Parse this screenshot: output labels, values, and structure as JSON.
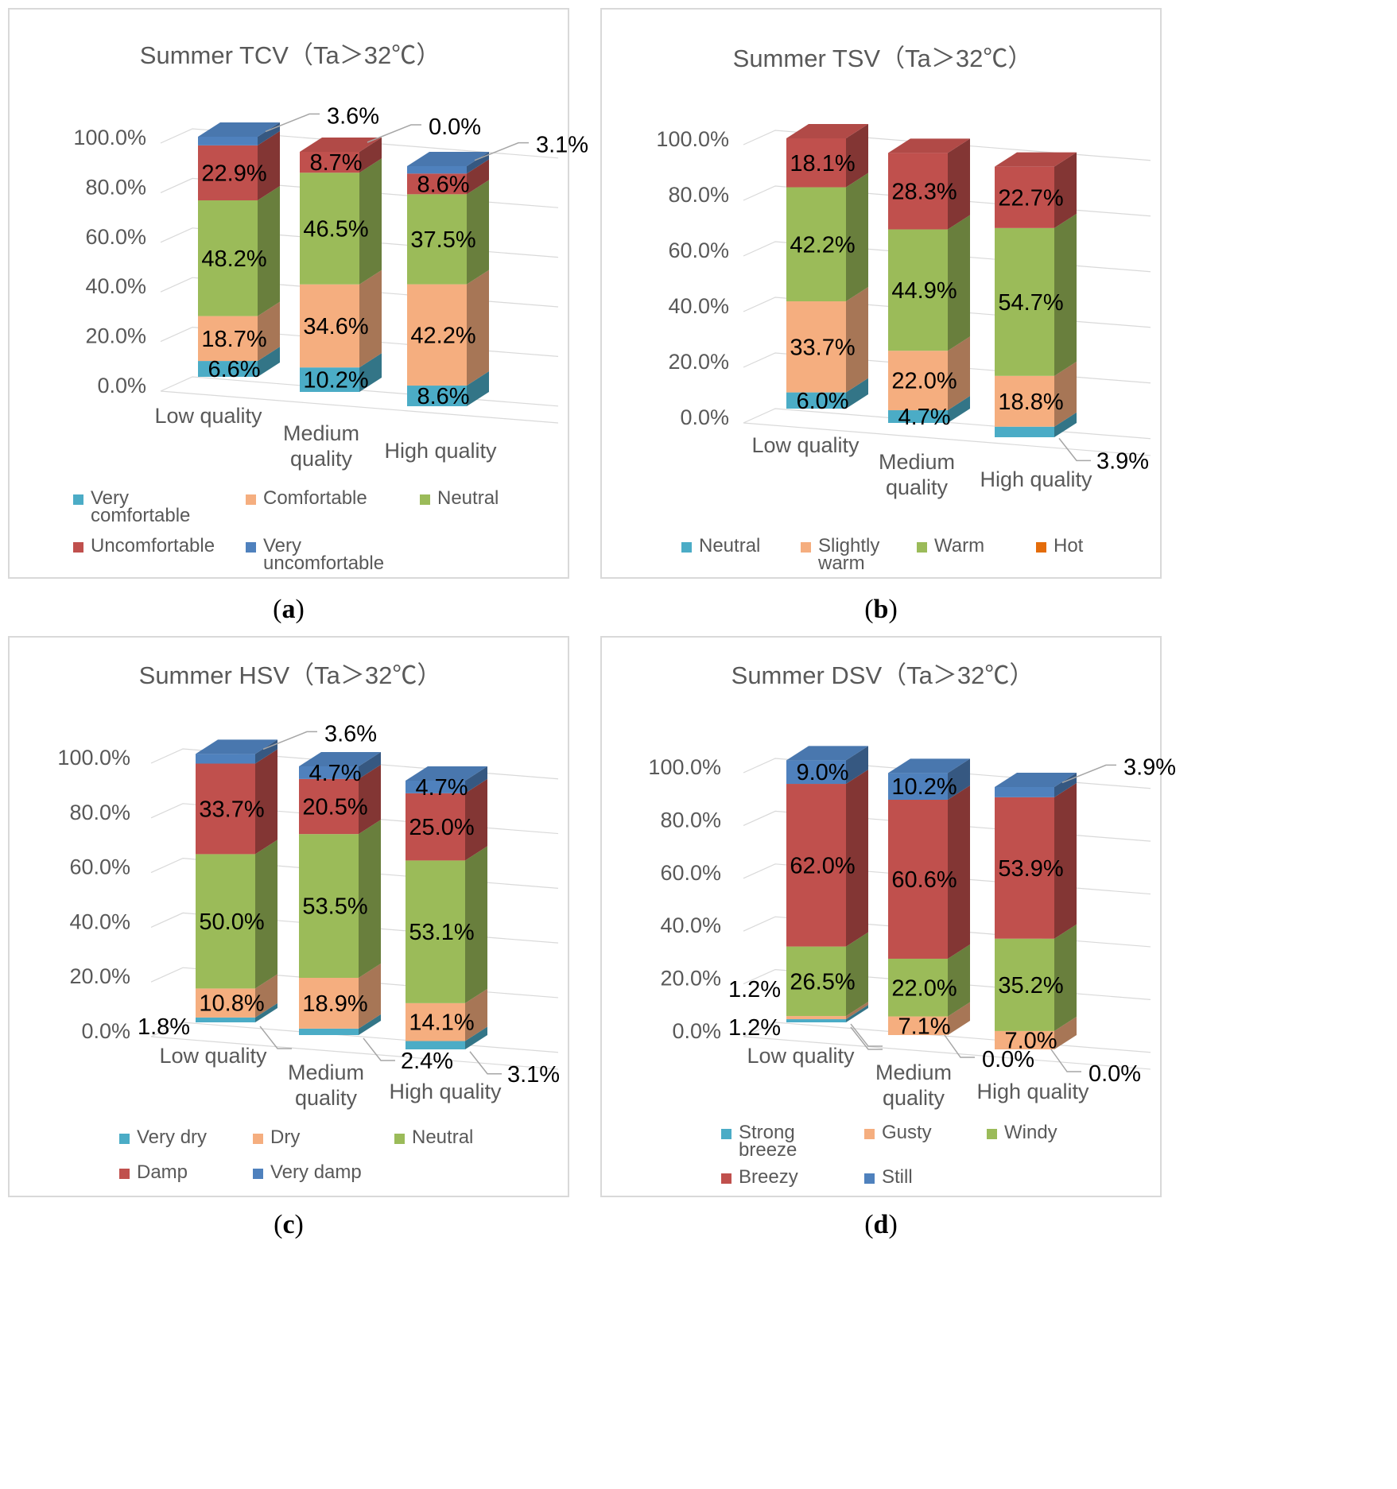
{
  "figure": {
    "colors": {
      "cyan": "#4bacc6",
      "orange": "#f5ae7f",
      "green": "#9bbb59",
      "red": "#c0504d",
      "blue": "#4f81bd",
      "hot": "#e46c0a"
    }
  },
  "chart_data": [
    {
      "type": "bar",
      "stacked": true,
      "three_d": true,
      "panel_label": "a",
      "title": "Summer TCV（Ta＞32℃）",
      "categories": [
        "Low quality",
        "Medium quality",
        "High quality"
      ],
      "ylim": [
        0,
        100
      ],
      "yticks": [
        "0.0%",
        "20.0%",
        "40.0%",
        "60.0%",
        "80.0%",
        "100.0%"
      ],
      "grid": true,
      "legend_position": "bottom",
      "series": [
        {
          "name": "Very comfortable",
          "color": "#4bacc6",
          "values": [
            6.6,
            10.2,
            8.6
          ],
          "labels": [
            "6.6%",
            "10.2%",
            "8.6%"
          ]
        },
        {
          "name": "Comfortable",
          "color": "#f5ae7f",
          "values": [
            18.7,
            34.6,
            42.2
          ],
          "labels": [
            "18.7%",
            "34.6%",
            "42.2%"
          ]
        },
        {
          "name": "Neutral",
          "color": "#9bbb59",
          "values": [
            48.2,
            46.5,
            37.5
          ],
          "labels": [
            "48.2%",
            "46.5%",
            "37.5%"
          ]
        },
        {
          "name": "Uncomfortable",
          "color": "#c0504d",
          "values": [
            22.9,
            8.7,
            8.6
          ],
          "labels": [
            "22.9%",
            "8.7%",
            "8.6%"
          ]
        },
        {
          "name": "Very uncomfortable",
          "color": "#4f81bd",
          "values": [
            3.6,
            0.0,
            3.1
          ],
          "labels": [
            "3.6%",
            "0.0%",
            "3.1%"
          ]
        }
      ]
    },
    {
      "type": "bar",
      "stacked": true,
      "three_d": true,
      "panel_label": "b",
      "title": "Summer TSV（Ta＞32℃）",
      "categories": [
        "Low quality",
        "Medium quality",
        "High quality"
      ],
      "ylim": [
        0,
        100
      ],
      "yticks": [
        "0.0%",
        "20.0%",
        "40.0%",
        "60.0%",
        "80.0%",
        "100.0%"
      ],
      "grid": true,
      "legend_position": "bottom",
      "series": [
        {
          "name": "Neutral",
          "color": "#4bacc6",
          "values": [
            6.0,
            4.7,
            3.9
          ],
          "labels": [
            "6.0%",
            "4.7%",
            "3.9%"
          ]
        },
        {
          "name": "Slightly warm",
          "color": "#f5ae7f",
          "values": [
            33.7,
            22.0,
            18.8
          ],
          "labels": [
            "33.7%",
            "22.0%",
            "18.8%"
          ]
        },
        {
          "name": "Warm",
          "color": "#9bbb59",
          "values": [
            42.2,
            44.9,
            54.7
          ],
          "labels": [
            "42.2%",
            "44.9%",
            "54.7%"
          ]
        },
        {
          "name": "Hot",
          "color": "#c0504d",
          "legend_color": "#e46c0a",
          "values": [
            18.1,
            28.3,
            22.7
          ],
          "labels": [
            "18.1%",
            "28.3%",
            "22.7%"
          ]
        }
      ]
    },
    {
      "type": "bar",
      "stacked": true,
      "three_d": true,
      "panel_label": "c",
      "title": "Summer HSV（Ta＞32℃）",
      "categories": [
        "Low quality",
        "Medium quality",
        "High quality"
      ],
      "ylim": [
        0,
        100
      ],
      "yticks": [
        "0.0%",
        "20.0%",
        "40.0%",
        "60.0%",
        "80.0%",
        "100.0%"
      ],
      "grid": true,
      "legend_position": "bottom",
      "series": [
        {
          "name": "Very dry",
          "color": "#4bacc6",
          "values": [
            1.8,
            2.4,
            3.1
          ],
          "labels": [
            "1.8%",
            "2.4%",
            "3.1%"
          ]
        },
        {
          "name": "Dry",
          "color": "#f5ae7f",
          "values": [
            10.8,
            18.9,
            14.1
          ],
          "labels": [
            "10.8%",
            "18.9%",
            "14.1%"
          ]
        },
        {
          "name": "Neutral",
          "color": "#9bbb59",
          "values": [
            50.0,
            53.5,
            53.1
          ],
          "labels": [
            "50.0%",
            "53.5%",
            "53.1%"
          ]
        },
        {
          "name": "Damp",
          "color": "#c0504d",
          "values": [
            33.7,
            20.5,
            25.0
          ],
          "labels": [
            "33.7%",
            "20.5%",
            "25.0%"
          ]
        },
        {
          "name": "Very damp",
          "color": "#4f81bd",
          "values": [
            3.6,
            4.7,
            4.7
          ],
          "labels": [
            "3.6%",
            "4.7%",
            "4.7%"
          ]
        }
      ]
    },
    {
      "type": "bar",
      "stacked": true,
      "three_d": true,
      "panel_label": "d",
      "title": "Summer DSV（Ta＞32℃）",
      "categories": [
        "Low quality",
        "Medium quality",
        "High quality"
      ],
      "ylim": [
        0,
        100
      ],
      "yticks": [
        "0.0%",
        "20.0%",
        "40.0%",
        "60.0%",
        "80.0%",
        "100.0%"
      ],
      "grid": true,
      "legend_position": "bottom",
      "series": [
        {
          "name": "Strong breeze",
          "color": "#4bacc6",
          "values": [
            1.2,
            0.0,
            0.0
          ],
          "labels": [
            "1.2%",
            "",
            ""
          ]
        },
        {
          "name": "Gusty",
          "color": "#f5ae7f",
          "values": [
            1.2,
            7.1,
            7.0
          ],
          "labels": [
            "1.2%",
            "7.1%",
            "7.0%"
          ]
        },
        {
          "name": "Windy",
          "color": "#9bbb59",
          "values": [
            26.5,
            22.0,
            35.2
          ],
          "labels": [
            "26.5%",
            "22.0%",
            "35.2%"
          ]
        },
        {
          "name": "Breezy",
          "color": "#c0504d",
          "values": [
            62.0,
            60.6,
            53.9
          ],
          "labels": [
            "62.0%",
            "60.6%",
            "53.9%"
          ]
        },
        {
          "name": "Still",
          "color": "#4f81bd",
          "values": [
            9.0,
            10.2,
            3.9
          ],
          "labels": [
            "9.0%",
            "10.2%",
            "3.9%"
          ]
        }
      ],
      "extra_labels": [
        "0.0%",
        "0.0%"
      ]
    }
  ]
}
